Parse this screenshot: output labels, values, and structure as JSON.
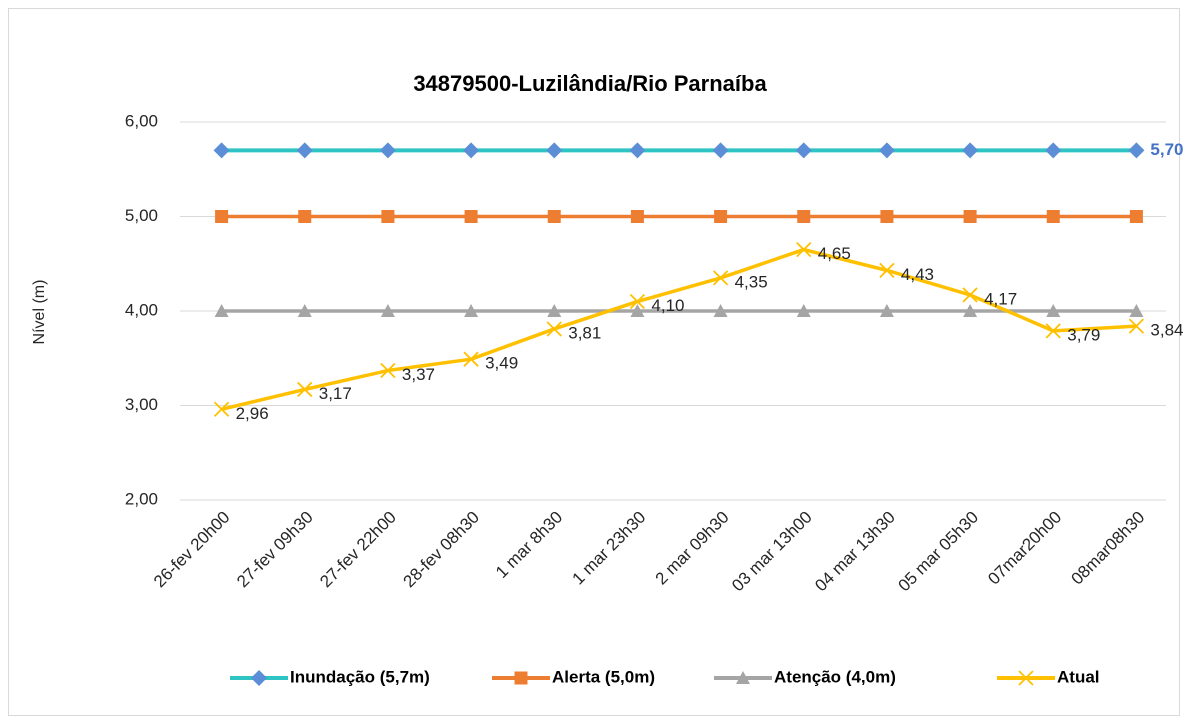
{
  "chart_data": {
    "type": "line",
    "title": "34879500-Luzilândia/Rio Parnaíba",
    "y_label": "Nível  (m)",
    "categories": [
      "26-fev 20h00",
      "27-fev 09h30",
      "27-fev 22h00",
      "28-fev 08h30",
      "1 mar 8h30",
      "1 mar 23h30",
      "2 mar 09h30",
      "03 mar 13h00",
      "04 mar 13h30",
      "05 mar 05h30",
      "07mar20h00",
      "08mar08h30"
    ],
    "ylim": [
      2,
      6
    ],
    "yticks": [
      {
        "value": 2,
        "label": "2,00"
      },
      {
        "value": 3,
        "label": "3,00"
      },
      {
        "value": 4,
        "label": "4,00"
      },
      {
        "value": 5,
        "label": "5,00"
      },
      {
        "value": 6,
        "label": "6,00"
      }
    ],
    "grid": true,
    "legend": "bottom",
    "series": [
      {
        "name": "Inundação (5,7m)",
        "color": "#2ec4c4",
        "marker_color": "#5b8ed6",
        "marker": "diamond",
        "values": [
          5.7,
          5.7,
          5.7,
          5.7,
          5.7,
          5.7,
          5.7,
          5.7,
          5.7,
          5.7,
          5.7,
          5.7
        ],
        "value_labels": [
          null,
          null,
          null,
          null,
          null,
          null,
          null,
          null,
          null,
          null,
          null,
          "5,70"
        ]
      },
      {
        "name": "Alerta (5,0m)",
        "color": "#ed7d31",
        "marker_color": "#ed7d31",
        "marker": "square",
        "values": [
          5,
          5,
          5,
          5,
          5,
          5,
          5,
          5,
          5,
          5,
          5,
          5
        ]
      },
      {
        "name": "Atenção (4,0m)",
        "color": "#a5a5a5",
        "marker_color": "#a5a5a5",
        "marker": "triangle",
        "values": [
          4,
          4,
          4,
          4,
          4,
          4,
          4,
          4,
          4,
          4,
          4,
          4
        ]
      },
      {
        "name": "Atual",
        "color": "#ffc000",
        "marker_color": "#ffc000",
        "marker": "x",
        "values": [
          2.96,
          3.17,
          3.37,
          3.49,
          3.81,
          4.1,
          4.35,
          4.65,
          4.43,
          4.17,
          3.79,
          3.84
        ],
        "value_labels": [
          "2,96",
          "3,17",
          "3,37",
          "3,49",
          "3,81",
          "4,10",
          "4,35",
          "4,65",
          "4,43",
          "4,17",
          "3,79",
          "3,84"
        ]
      }
    ]
  }
}
